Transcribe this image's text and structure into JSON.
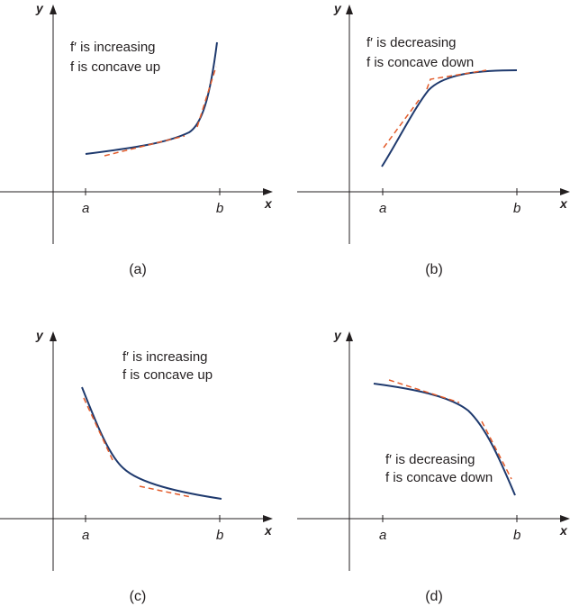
{
  "axis_labels": {
    "x": "x",
    "y": "y"
  },
  "tick_labels": {
    "a": "a",
    "b": "b"
  },
  "panels": [
    {
      "id": "a",
      "caption": "(a)",
      "note_line1": "f′ is increasing",
      "note_line2": "f is concave up"
    },
    {
      "id": "b",
      "caption": "(b)",
      "note_line1": "f′ is decreasing",
      "note_line2": "f is concave down"
    },
    {
      "id": "c",
      "caption": "(c)",
      "note_line1": "f′ is increasing",
      "note_line2": "f is concave up"
    },
    {
      "id": "d",
      "caption": "(d)",
      "note_line1": "f′ is decreasing",
      "note_line2": "f is concave down"
    }
  ],
  "colors": {
    "curve": "#1f3a6e",
    "tangent": "#e35b2a",
    "axis": "#231f20"
  }
}
